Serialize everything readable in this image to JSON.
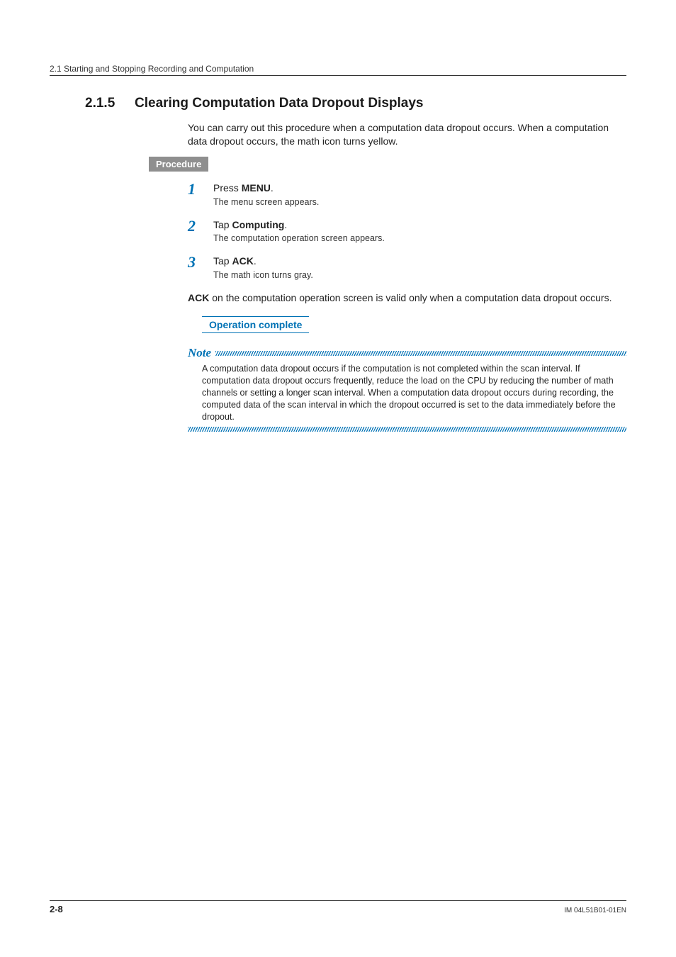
{
  "colors": {
    "accent": "#0072b5",
    "label_bg": "#8f8f8f",
    "text": "#222222",
    "rule": "#333333",
    "background": "#ffffff"
  },
  "typography": {
    "body_family": "Arial, Helvetica, sans-serif",
    "step_number_family": "Georgia, Times New Roman, serif",
    "section_title_size_pt": 14,
    "body_size_pt": 10.5,
    "step_number_size_pt": 16,
    "note_label_size_pt": 13,
    "footer_docid_size_pt": 7.5
  },
  "running_head": "2.1  Starting and Stopping Recording and Computation",
  "section": {
    "number": "2.1.5",
    "title": "Clearing Computation Data Dropout Displays"
  },
  "intro": "You can carry out this procedure when a computation data dropout occurs. When a computation data dropout occurs, the math icon turns yellow.",
  "procedure_label": "Procedure",
  "steps": [
    {
      "n": "1",
      "line_pre": "Press ",
      "line_bold": "MENU",
      "line_post": ".",
      "sub": "The menu screen appears."
    },
    {
      "n": "2",
      "line_pre": "Tap ",
      "line_bold": "Computing",
      "line_post": ".",
      "sub": "The computation operation screen appears."
    },
    {
      "n": "3",
      "line_pre": "Tap ",
      "line_bold": "ACK",
      "line_post": ".",
      "sub": "The math icon turns gray."
    }
  ],
  "after_steps": {
    "bold": "ACK",
    "rest": " on the computation operation screen is valid only when a computation data dropout occurs."
  },
  "operation_complete": "Operation complete",
  "note": {
    "label": "Note",
    "body": "A computation data dropout occurs if the computation is not completed within the scan interval. If computation data dropout occurs frequently, reduce the load on the CPU by reducing the number of math channels or setting a longer scan interval. When a computation data dropout occurs during recording, the computed data of the scan interval in which the dropout occurred is set to the data immediately before the dropout."
  },
  "footer": {
    "page": "2-8",
    "doc_id": "IM 04L51B01-01EN"
  }
}
